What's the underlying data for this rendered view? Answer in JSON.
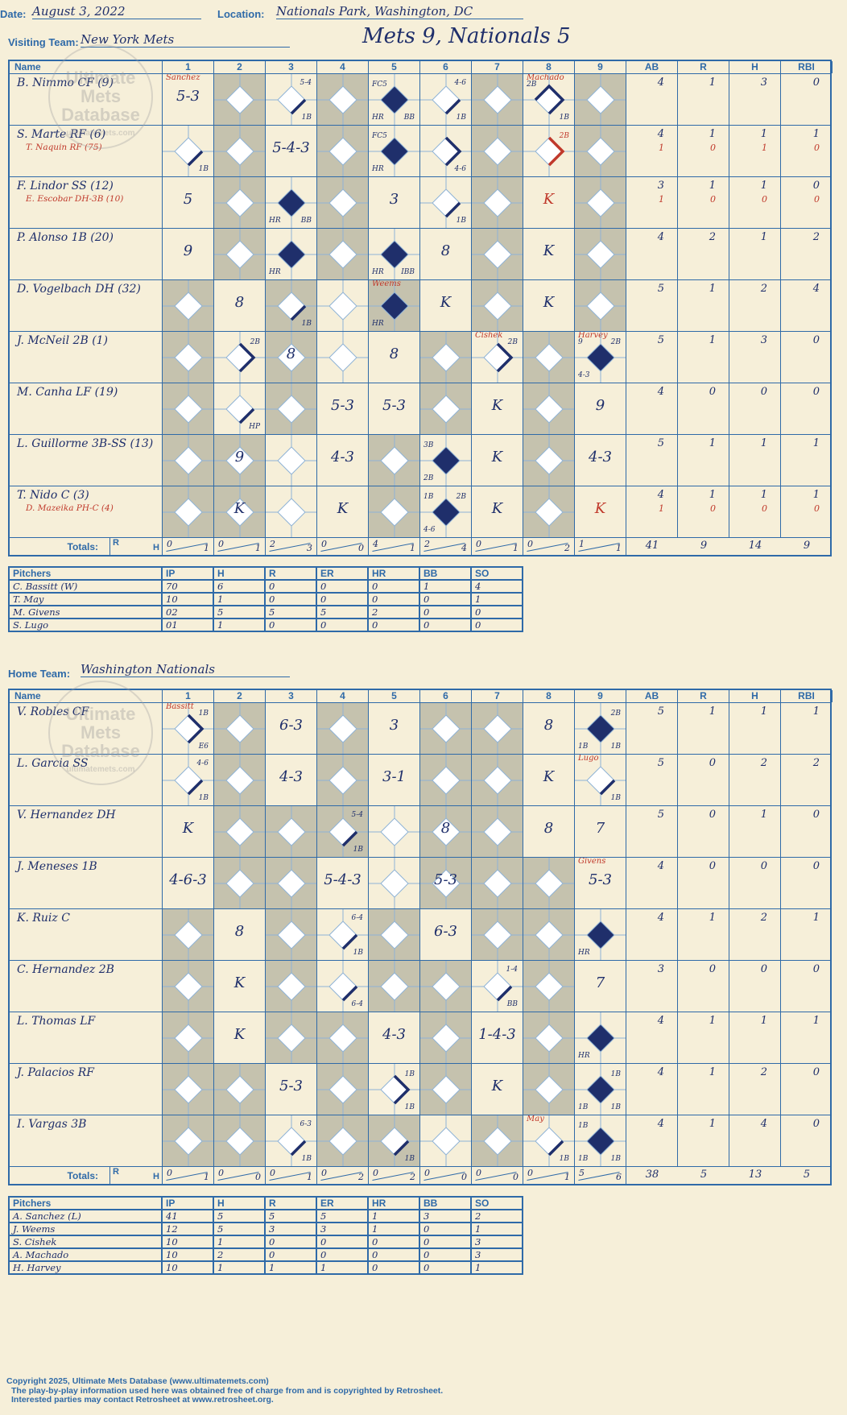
{
  "header": {
    "date_label": "Date:",
    "date": "August 3, 2022",
    "location_label": "Location:",
    "location": "Nationals Park, Washington, DC",
    "visiting_label": "Visiting Team:",
    "visiting_team": "New York Mets",
    "home_label": "Home Team:",
    "home_team": "Washington Nationals",
    "final": "Mets 9, Nationals 5"
  },
  "columns": {
    "name": "Name",
    "innings": [
      "1",
      "2",
      "3",
      "4",
      "5",
      "6",
      "7",
      "8",
      "9"
    ],
    "stats": [
      "AB",
      "R",
      "H",
      "RBI"
    ],
    "totals": "Totals:",
    "r": "R",
    "h": "H"
  },
  "watermark": {
    "line1": "Ultimate",
    "line2": "Mets",
    "line3": "Database",
    "url": "ultimatemets.com"
  },
  "visitors": {
    "gray_innings": [
      [
        2,
        4,
        7,
        9
      ],
      [
        2,
        4,
        7,
        9
      ],
      [
        2,
        4,
        7,
        9
      ],
      [
        2,
        4,
        7,
        9
      ],
      [
        1,
        3,
        5,
        7,
        9
      ],
      [
        1,
        3,
        6,
        8
      ],
      [
        1,
        3,
        6,
        8
      ],
      [
        1,
        2,
        5,
        8
      ],
      [
        1,
        2,
        5,
        8
      ]
    ],
    "batters": [
      {
        "name": "B. Nimmo CF (9)",
        "sub": "",
        "stats": [
          "4",
          "1",
          "3",
          "0"
        ],
        "stats2": [
          "",
          "",
          "",
          ""
        ],
        "cells": {
          "1": {
            "res": "5-3",
            "top": "Sanchez",
            "topRed": true
          },
          "3": {
            "bases": [
              "1"
            ],
            "note": "5-4",
            "br": "1B"
          },
          "5": {
            "bases": [
              "1",
              "2",
              "3",
              "h"
            ],
            "fill": true,
            "tl": "FC5",
            "bl": "HR",
            "br": "BB"
          },
          "6": {
            "bases": [
              "1"
            ],
            "note": "4-6",
            "br": "1B"
          },
          "8": {
            "bases": [
              "1",
              "2",
              "3"
            ],
            "top": "Machado",
            "topRed": true,
            "tl": "2B",
            "br": "1B"
          }
        }
      },
      {
        "name": "S. Marte RF (6)",
        "sub": "T. Naquin RF (75)",
        "stats": [
          "4",
          "1",
          "1",
          "1"
        ],
        "stats2": [
          "1",
          "0",
          "1",
          "0"
        ],
        "cells": {
          "1": {
            "bases": [
              "1"
            ],
            "br": "1B"
          },
          "3": {
            "res": "5-4-3"
          },
          "5": {
            "bases": [
              "1",
              "2",
              "3",
              "h"
            ],
            "fill": true,
            "tl": "FC5",
            "bl": "HR"
          },
          "6": {
            "bases": [
              "1",
              "2"
            ],
            "br": "4-6"
          },
          "8": {
            "bases": [
              "1",
              "2"
            ],
            "red": true,
            "tr": "2B",
            "trRed": true
          }
        }
      },
      {
        "name": "F. Lindor SS (12)",
        "sub": "E. Escobar DH-3B (10)",
        "stats": [
          "3",
          "1",
          "1",
          "0"
        ],
        "stats2": [
          "1",
          "0",
          "0",
          "0"
        ],
        "cells": {
          "1": {
            "res": "5"
          },
          "3": {
            "bases": [
              "1",
              "2",
              "3",
              "h"
            ],
            "fill": true,
            "bl": "HR",
            "br": "BB"
          },
          "5": {
            "res": "3"
          },
          "6": {
            "bases": [
              "1"
            ],
            "br": "1B"
          },
          "8": {
            "res": "K",
            "redRes": true
          }
        }
      },
      {
        "name": "P. Alonso 1B (20)",
        "sub": "",
        "stats": [
          "4",
          "2",
          "1",
          "2"
        ],
        "stats2": [
          "",
          "",
          "",
          ""
        ],
        "cells": {
          "1": {
            "res": "9"
          },
          "3": {
            "bases": [
              "1",
              "2",
              "3",
              "h"
            ],
            "fill": true,
            "bl": "HR"
          },
          "5": {
            "bases": [
              "1",
              "2",
              "3",
              "h"
            ],
            "fill": true,
            "bl": "HR",
            "br": "IBB"
          },
          "6": {
            "res": "8"
          },
          "8": {
            "res": "K"
          }
        }
      },
      {
        "name": "D. Vogelbach DH (32)",
        "sub": "",
        "stats": [
          "5",
          "1",
          "2",
          "4"
        ],
        "stats2": [
          "",
          "",
          "",
          ""
        ],
        "cells": {
          "2": {
            "res": "8"
          },
          "3": {
            "bases": [
              "1"
            ],
            "br": "1B"
          },
          "5": {
            "bases": [
              "1",
              "2",
              "3",
              "h"
            ],
            "fill": true,
            "top": "Weems",
            "topRed": true,
            "bl": "HR"
          },
          "6": {
            "res": "K"
          },
          "8": {
            "res": "K"
          }
        }
      },
      {
        "name": "J. McNeil 2B (1)",
        "sub": "",
        "stats": [
          "5",
          "1",
          "3",
          "0"
        ],
        "stats2": [
          "",
          "",
          "",
          ""
        ],
        "cells": {
          "2": {
            "bases": [
              "1",
              "2"
            ],
            "tr": "2B"
          },
          "3": {
            "res": "8"
          },
          "5": {
            "res": "8"
          },
          "7": {
            "bases": [
              "1",
              "2"
            ],
            "top": "Cishek",
            "topRed": true,
            "tr": "2B"
          },
          "9": {
            "bases": [
              "1",
              "2",
              "3",
              "h"
            ],
            "fill": true,
            "top": "Harvey",
            "topRed": true,
            "tl": "9",
            "tr": "2B",
            "bl": "4-3"
          }
        }
      },
      {
        "name": "M. Canha LF (19)",
        "sub": "",
        "stats": [
          "4",
          "0",
          "0",
          "0"
        ],
        "stats2": [
          "",
          "",
          "",
          ""
        ],
        "cells": {
          "2": {
            "bases": [
              "1"
            ],
            "br": "HP"
          },
          "4": {
            "res": "5-3"
          },
          "5": {
            "res": "5-3"
          },
          "7": {
            "res": "K"
          },
          "9": {
            "res": "9"
          }
        }
      },
      {
        "name": "L. Guillorme 3B-SS (13)",
        "sub": "",
        "stats": [
          "5",
          "1",
          "1",
          "1"
        ],
        "stats2": [
          "",
          "",
          "",
          ""
        ],
        "cells": {
          "2": {
            "res": "9"
          },
          "4": {
            "res": "4-3"
          },
          "6": {
            "bases": [
              "1",
              "2",
              "3",
              "h"
            ],
            "fill": true,
            "tl": "3B",
            "bl": "2B"
          },
          "7": {
            "res": "K"
          },
          "9": {
            "res": "4-3"
          }
        }
      },
      {
        "name": "T. Nido C (3)",
        "sub": "D. Mazeika PH-C (4)",
        "stats": [
          "4",
          "1",
          "1",
          "1"
        ],
        "stats2": [
          "1",
          "0",
          "0",
          "0"
        ],
        "cells": {
          "2": {
            "res": "K"
          },
          "4": {
            "res": "K"
          },
          "6": {
            "bases": [
              "1",
              "2",
              "3",
              "h"
            ],
            "fill": true,
            "tl": "1B",
            "tr": "2B",
            "bl": "4-6"
          },
          "7": {
            "res": "K"
          },
          "9": {
            "res": "K",
            "redRes": true
          }
        }
      }
    ],
    "totals": {
      "innings": [
        [
          "0",
          "1"
        ],
        [
          "0",
          "1"
        ],
        [
          "2",
          "3"
        ],
        [
          "0",
          "0"
        ],
        [
          "4",
          "1"
        ],
        [
          "2",
          "4"
        ],
        [
          "0",
          "1"
        ],
        [
          "0",
          "2"
        ],
        [
          "1",
          "1"
        ]
      ],
      "stats": [
        "41",
        "9",
        "14",
        "9"
      ]
    },
    "pitchers_header": [
      "Pitchers",
      "IP",
      "H",
      "R",
      "ER",
      "HR",
      "BB",
      "SO"
    ],
    "pitchers": [
      [
        "C. Bassitt (W)",
        "70",
        "6",
        "0",
        "0",
        "0",
        "1",
        "4"
      ],
      [
        "T. May",
        "10",
        "1",
        "0",
        "0",
        "0",
        "0",
        "1"
      ],
      [
        "M. Givens",
        "02",
        "5",
        "5",
        "5",
        "2",
        "0",
        "0"
      ],
      [
        "S. Lugo",
        "01",
        "1",
        "0",
        "0",
        "0",
        "0",
        "0"
      ]
    ]
  },
  "home": {
    "gray_innings": [
      [
        2,
        4,
        6,
        7
      ],
      [
        2,
        4,
        6,
        7
      ],
      [
        2,
        3,
        4,
        6,
        7
      ],
      [
        2,
        3,
        6,
        7,
        8
      ],
      [
        1,
        3,
        5,
        7,
        8
      ],
      [
        1,
        3,
        5,
        6,
        8
      ],
      [
        1,
        3,
        4,
        6,
        8
      ],
      [
        1,
        2,
        4,
        6,
        8
      ],
      [
        1,
        2,
        4,
        5,
        7
      ]
    ],
    "batters": [
      {
        "name": "V. Robles CF",
        "sub": "",
        "stats": [
          "5",
          "1",
          "1",
          "1"
        ],
        "stats2": [
          "",
          "",
          "",
          ""
        ],
        "cells": {
          "1": {
            "bases": [
              "1",
              "2"
            ],
            "top": "Bassitt",
            "topRed": true,
            "tr": "1B",
            "br": "E6"
          },
          "3": {
            "res": "6-3"
          },
          "5": {
            "res": "3"
          },
          "8": {
            "res": "8"
          },
          "9": {
            "bases": [
              "1",
              "2",
              "3",
              "h"
            ],
            "fill": true,
            "tr": "2B",
            "bl": "1B",
            "br": "1B"
          }
        }
      },
      {
        "name": "L. Garcia SS",
        "sub": "",
        "stats": [
          "5",
          "0",
          "2",
          "2"
        ],
        "stats2": [
          "",
          "",
          "",
          ""
        ],
        "cells": {
          "1": {
            "bases": [
              "1"
            ],
            "note": "4-6",
            "br": "1B"
          },
          "3": {
            "res": "4-3"
          },
          "5": {
            "res": "3-1"
          },
          "8": {
            "res": "K"
          },
          "9": {
            "bases": [
              "1"
            ],
            "top": "Lugo",
            "topRed": true,
            "br": "1B"
          }
        }
      },
      {
        "name": "V. Hernandez DH",
        "sub": "",
        "stats": [
          "5",
          "0",
          "1",
          "0"
        ],
        "stats2": [
          "",
          "",
          "",
          ""
        ],
        "cells": {
          "1": {
            "res": "K"
          },
          "4": {
            "bases": [
              "1"
            ],
            "note": "5-4",
            "br": "1B"
          },
          "6": {
            "res": "8"
          },
          "8": {
            "res": "8"
          },
          "9": {
            "res": "7"
          }
        }
      },
      {
        "name": "J. Meneses 1B",
        "sub": "",
        "stats": [
          "4",
          "0",
          "0",
          "0"
        ],
        "stats2": [
          "",
          "",
          "",
          ""
        ],
        "cells": {
          "1": {
            "res": "4-6-3"
          },
          "4": {
            "res": "5-4-3"
          },
          "6": {
            "res": "5-3"
          },
          "9": {
            "res": "5-3",
            "top": "Givens",
            "topRed": true
          }
        }
      },
      {
        "name": "K. Ruiz C",
        "sub": "",
        "stats": [
          "4",
          "1",
          "2",
          "1"
        ],
        "stats2": [
          "",
          "",
          "",
          ""
        ],
        "cells": {
          "2": {
            "res": "8"
          },
          "4": {
            "bases": [
              "1"
            ],
            "note": "6-4",
            "br": "1B"
          },
          "6": {
            "res": "6-3"
          },
          "9": {
            "bases": [
              "1",
              "2",
              "3",
              "h"
            ],
            "fill": true,
            "bl": "HR"
          }
        }
      },
      {
        "name": "C. Hernandez 2B",
        "sub": "",
        "stats": [
          "3",
          "0",
          "0",
          "0"
        ],
        "stats2": [
          "",
          "",
          "",
          ""
        ],
        "cells": {
          "2": {
            "res": "K"
          },
          "4": {
            "bases": [
              "1"
            ],
            "br": "6-4"
          },
          "7": {
            "bases": [
              "1"
            ],
            "note": "1-4",
            "br": "BB"
          },
          "9": {
            "res": "7"
          }
        }
      },
      {
        "name": "L. Thomas LF",
        "sub": "",
        "stats": [
          "4",
          "1",
          "1",
          "1"
        ],
        "stats2": [
          "",
          "",
          "",
          ""
        ],
        "cells": {
          "2": {
            "res": "K"
          },
          "5": {
            "res": "4-3"
          },
          "7": {
            "res": "1-4-3"
          },
          "9": {
            "bases": [
              "1",
              "2",
              "3",
              "h"
            ],
            "fill": true,
            "bl": "HR"
          }
        }
      },
      {
        "name": "J. Palacios RF",
        "sub": "",
        "stats": [
          "4",
          "1",
          "2",
          "0"
        ],
        "stats2": [
          "",
          "",
          "",
          ""
        ],
        "cells": {
          "3": {
            "res": "5-3"
          },
          "5": {
            "bases": [
              "1",
              "2"
            ],
            "tr": "1B",
            "br": "1B"
          },
          "7": {
            "res": "K"
          },
          "9": {
            "bases": [
              "1",
              "2",
              "3",
              "h"
            ],
            "fill": true,
            "tr": "1B",
            "bl": "1B",
            "br": "1B"
          }
        }
      },
      {
        "name": "I. Vargas 3B",
        "sub": "",
        "stats": [
          "4",
          "1",
          "4",
          "0"
        ],
        "stats2": [
          "",
          "",
          "",
          ""
        ],
        "cells": {
          "3": {
            "bases": [
              "1"
            ],
            "note": "6-3",
            "br": "1B"
          },
          "5": {
            "bases": [
              "1"
            ],
            "br": "1B"
          },
          "8": {
            "bases": [
              "1"
            ],
            "top": "May",
            "topRed": true,
            "br": "1B"
          },
          "9": {
            "bases": [
              "1",
              "2",
              "3",
              "h"
            ],
            "fill": true,
            "tl": "1B",
            "bl": "1B",
            "br": "1B"
          }
        }
      }
    ],
    "totals": {
      "innings": [
        [
          "0",
          "1"
        ],
        [
          "0",
          "0"
        ],
        [
          "0",
          "1"
        ],
        [
          "0",
          "2"
        ],
        [
          "0",
          "2"
        ],
        [
          "0",
          "0"
        ],
        [
          "0",
          "0"
        ],
        [
          "0",
          "1"
        ],
        [
          "5",
          "6"
        ]
      ],
      "stats": [
        "38",
        "5",
        "13",
        "5"
      ]
    },
    "pitchers_header": [
      "Pitchers",
      "IP",
      "H",
      "R",
      "ER",
      "HR",
      "BB",
      "SO"
    ],
    "pitchers": [
      [
        "A. Sanchez (L)",
        "41",
        "5",
        "5",
        "5",
        "1",
        "3",
        "2"
      ],
      [
        "J. Weems",
        "12",
        "5",
        "3",
        "3",
        "1",
        "0",
        "1"
      ],
      [
        "S. Cishek",
        "10",
        "1",
        "0",
        "0",
        "0",
        "0",
        "3"
      ],
      [
        "A. Machado",
        "10",
        "2",
        "0",
        "0",
        "0",
        "0",
        "3"
      ],
      [
        "H. Harvey",
        "10",
        "1",
        "1",
        "1",
        "0",
        "0",
        "1"
      ]
    ]
  },
  "footer": {
    "line1": "Copyright 2025, Ultimate Mets Database (www.ultimatemets.com)",
    "line2": "The play-by-play information used here was obtained free of charge from and is copyrighted by Retrosheet.",
    "line3": "Interested parties may contact Retrosheet at www.retrosheet.org."
  },
  "colors": {
    "ink": "#1f2f6b",
    "rule": "#2f6aa8",
    "red": "#c0392b",
    "paper": "#f6efd9",
    "shade": "#c5c2ae"
  }
}
